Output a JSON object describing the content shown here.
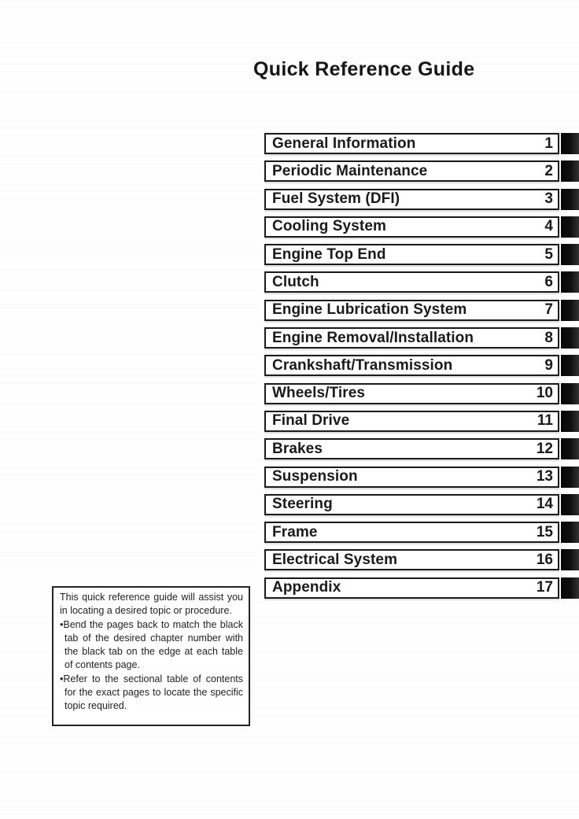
{
  "title": "Quick Reference Guide",
  "chapters": [
    {
      "label": "General Information",
      "number": "1"
    },
    {
      "label": "Periodic Maintenance",
      "number": "2"
    },
    {
      "label": "Fuel System (DFI)",
      "number": "3"
    },
    {
      "label": "Cooling System",
      "number": "4"
    },
    {
      "label": "Engine Top End",
      "number": "5"
    },
    {
      "label": "Clutch",
      "number": "6"
    },
    {
      "label": "Engine Lubrication System",
      "number": "7"
    },
    {
      "label": "Engine Removal/Installation",
      "number": "8"
    },
    {
      "label": "Crankshaft/Transmission",
      "number": "9"
    },
    {
      "label": "Wheels/Tires",
      "number": "10"
    },
    {
      "label": "Final Drive",
      "number": "11"
    },
    {
      "label": "Brakes",
      "number": "12"
    },
    {
      "label": "Suspension",
      "number": "13"
    },
    {
      "label": "Steering",
      "number": "14"
    },
    {
      "label": "Frame",
      "number": "15"
    },
    {
      "label": "Electrical System",
      "number": "16"
    },
    {
      "label": "Appendix",
      "number": "17"
    }
  ],
  "note": {
    "intro": "This quick reference guide will assist you in locating a desired topic or procedure.",
    "bullets": [
      "Bend the pages back to match the black tab of the desired chapter number with the black tab on the edge at each table of contents page.",
      "Refer to the sectional table of contents for the exact pages to locate the specific topic required."
    ]
  },
  "colors": {
    "ink": "#1a1a1a",
    "tab_black": "#0a0a0a",
    "paper": "#fefefe"
  }
}
